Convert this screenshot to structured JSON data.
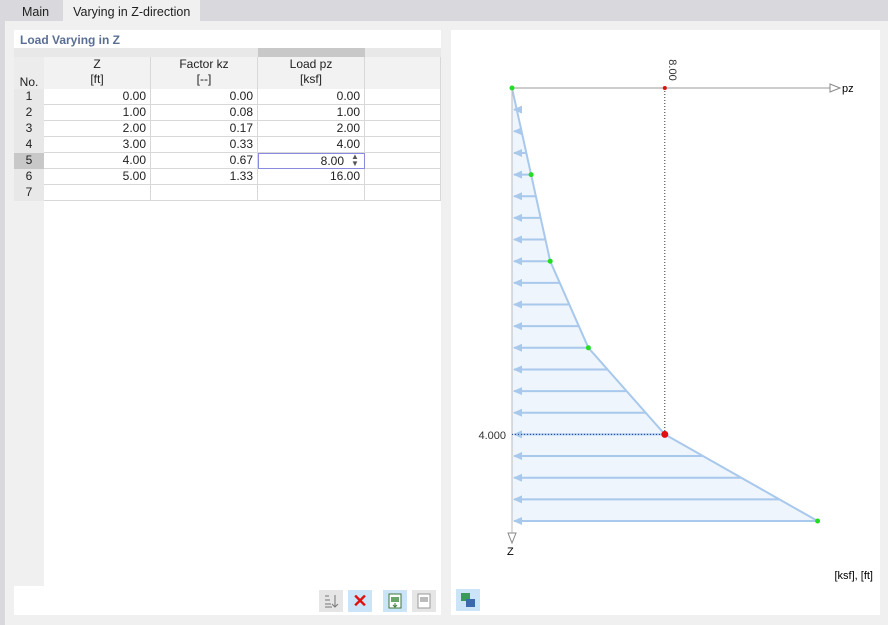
{
  "tabs": [
    "Main",
    "Varying in Z-direction"
  ],
  "table": {
    "title": "Load Varying in Z",
    "headers": [
      {
        "name": "No.",
        "unit": ""
      },
      {
        "name": "Z",
        "unit": "[ft]"
      },
      {
        "name": "Factor kz",
        "unit": "[--]"
      },
      {
        "name": "Load pz",
        "unit": "[ksf]"
      }
    ],
    "rows": [
      {
        "no": "1",
        "z": "0.00",
        "k": "0.00",
        "p": "0.00"
      },
      {
        "no": "2",
        "z": "1.00",
        "k": "0.08",
        "p": "1.00"
      },
      {
        "no": "3",
        "z": "2.00",
        "k": "0.17",
        "p": "2.00"
      },
      {
        "no": "4",
        "z": "3.00",
        "k": "0.33",
        "p": "4.00"
      },
      {
        "no": "5",
        "z": "4.00",
        "k": "0.67",
        "p": "8.00"
      },
      {
        "no": "6",
        "z": "5.00",
        "k": "1.33",
        "p": "16.00"
      },
      {
        "no": "7",
        "z": "",
        "k": "",
        "p": ""
      }
    ],
    "selected_row": 5
  },
  "toolbar": [
    "sort-icon",
    "delete-icon",
    "import-excel-icon",
    "export-excel-icon"
  ],
  "diagram": {
    "points": [
      [
        0,
        0
      ],
      [
        1,
        1
      ],
      [
        2,
        2
      ],
      [
        3,
        4
      ],
      [
        4,
        8
      ],
      [
        5,
        16
      ]
    ],
    "selected": {
      "z": 4,
      "p": 8
    },
    "selected_p_label": "8.00",
    "selected_z_label": "4.000",
    "axis_p": "pz",
    "axis_z": "Z",
    "units": "[ksf], [ft]",
    "colors": {
      "load": "#a8c8ec",
      "fill": "#eef5fc",
      "point": "#22dd22",
      "selected": "#e01010"
    }
  }
}
